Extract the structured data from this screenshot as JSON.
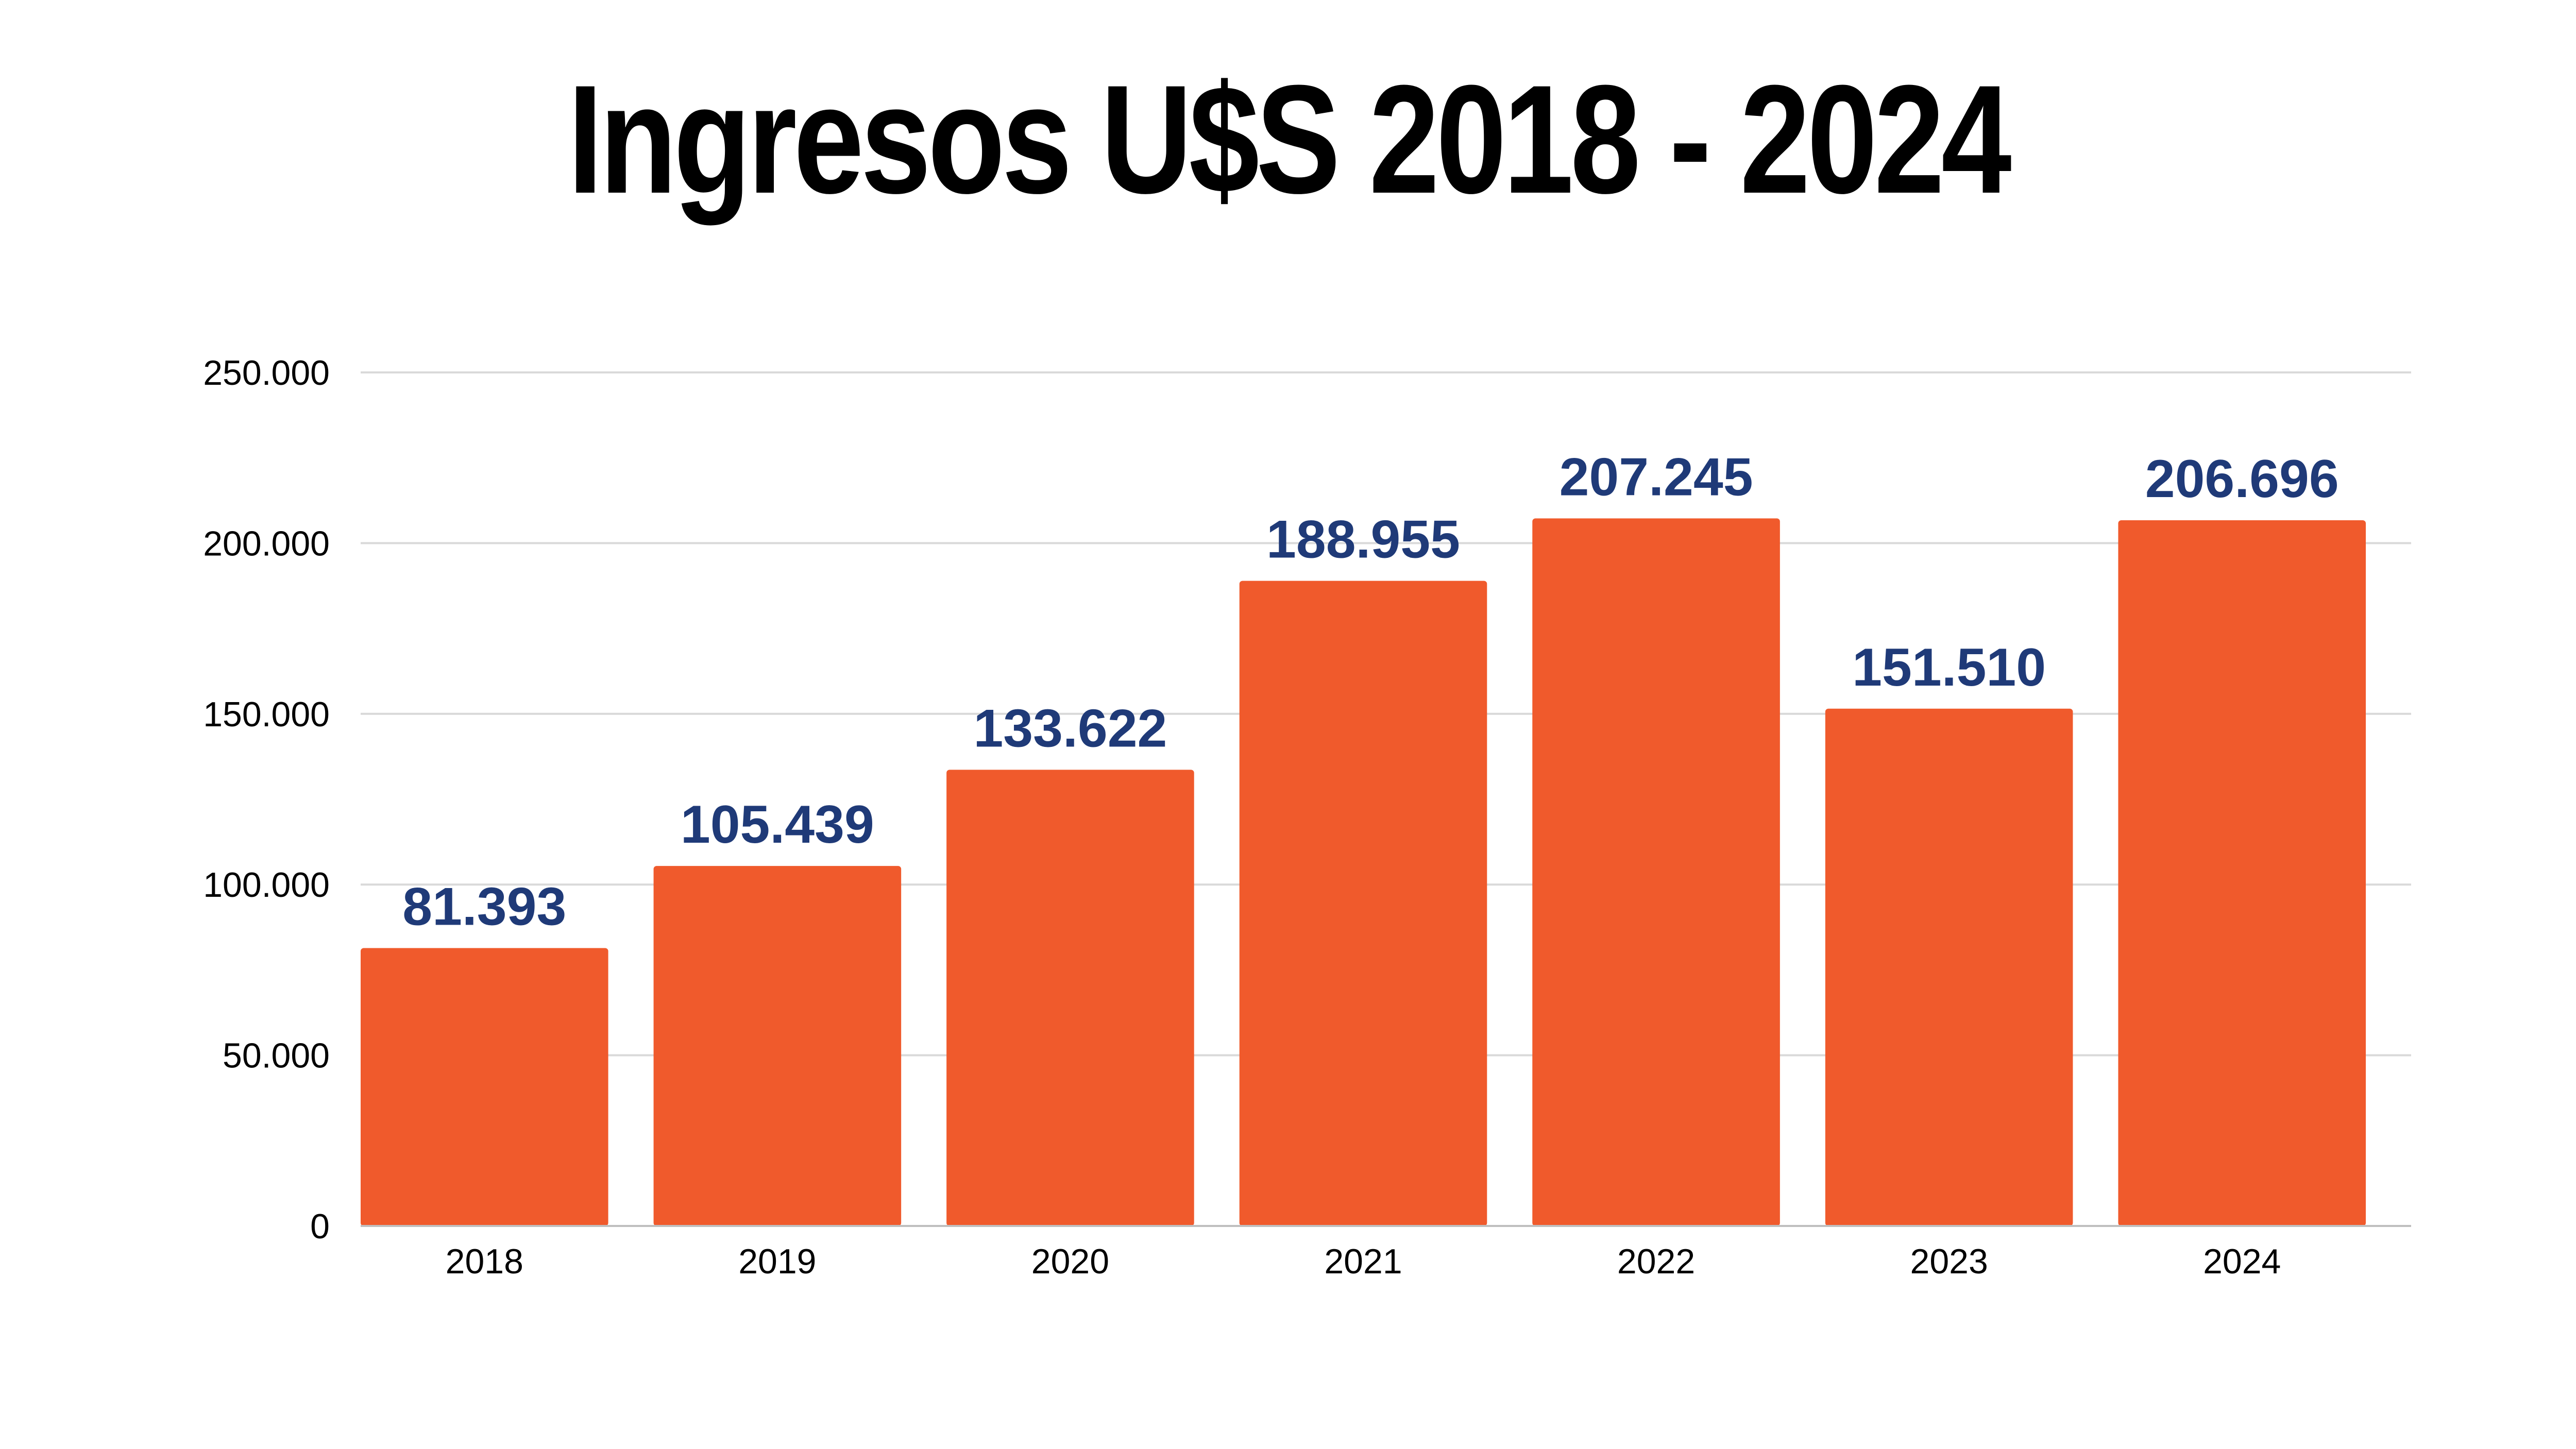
{
  "chart_data": {
    "type": "bar",
    "title": "Ingresos U$S 2018 - 2024",
    "categories": [
      "2018",
      "2019",
      "2020",
      "2021",
      "2022",
      "2023",
      "2024"
    ],
    "values": [
      81393,
      105439,
      133622,
      188955,
      207245,
      151510,
      206696
    ],
    "value_labels": [
      "81.393",
      "105.439",
      "133.622",
      "188.955",
      "207.245",
      "151.510",
      "206.696"
    ],
    "y_ticks": [
      0,
      50000,
      100000,
      150000,
      200000,
      250000
    ],
    "y_tick_labels": [
      "0",
      "50.000",
      "100.000",
      "150.000",
      "200.000",
      "250.000"
    ],
    "ylim": [
      0,
      250000
    ],
    "xlabel": "",
    "ylabel": "",
    "grid": true,
    "legend": "none",
    "colors": {
      "bar": "#F05A2C",
      "data_label": "#1F3A78",
      "grid": "#D9D9D9",
      "text": "#000000"
    }
  }
}
